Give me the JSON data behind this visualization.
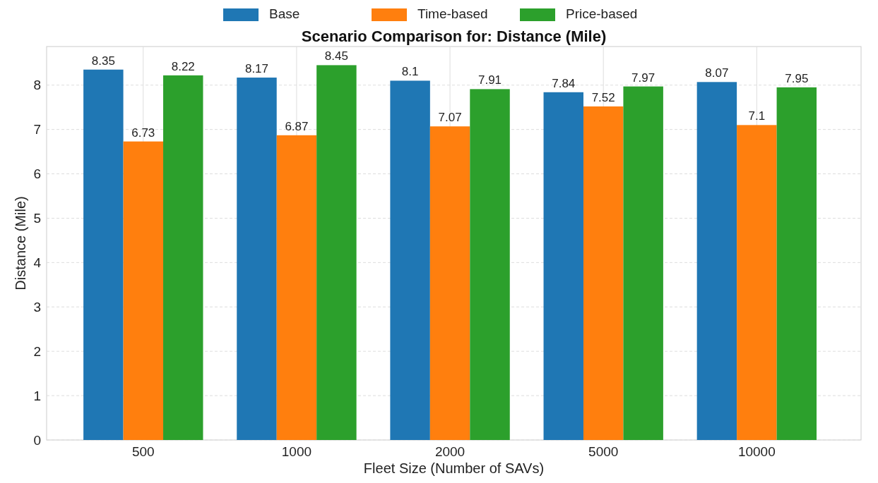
{
  "chart_data": {
    "type": "bar",
    "title": "Scenario Comparison for: Distance (Mile)",
    "xlabel": "Fleet Size (Number of SAVs)",
    "ylabel": "Distance (Mile)",
    "categories": [
      "500",
      "1000",
      "2000",
      "5000",
      "10000"
    ],
    "series": [
      {
        "name": "Base",
        "color": "#1f77b4",
        "values": [
          8.35,
          8.17,
          8.1,
          7.84,
          8.07
        ]
      },
      {
        "name": "Time-based",
        "color": "#ff7f0e",
        "values": [
          6.73,
          6.87,
          7.07,
          7.52,
          7.1
        ]
      },
      {
        "name": "Price-based",
        "color": "#2ca02c",
        "values": [
          8.22,
          8.45,
          7.91,
          7.97,
          7.95
        ]
      }
    ],
    "ylim": [
      0,
      8.87
    ],
    "yticks": [
      0,
      1,
      2,
      3,
      4,
      5,
      6,
      7,
      8
    ],
    "grid": true,
    "legend": "top",
    "data_labels": true
  }
}
